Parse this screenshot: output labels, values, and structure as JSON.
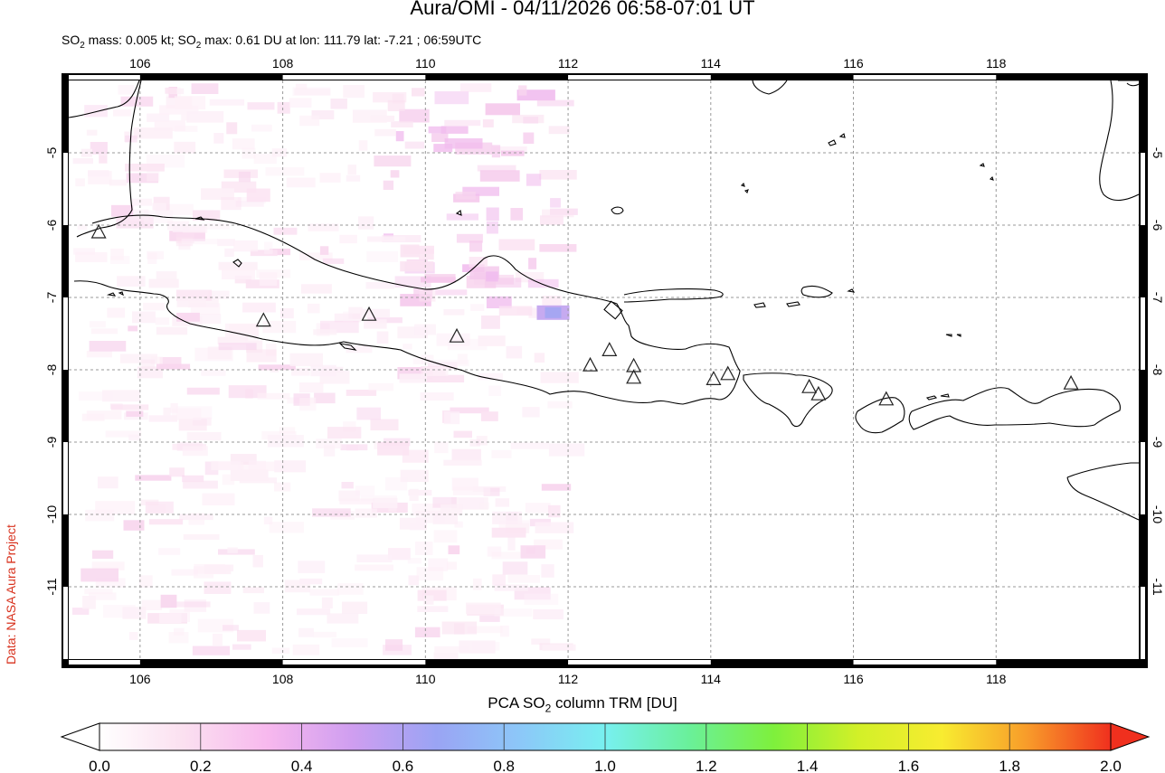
{
  "header": {
    "title": "Aura/OMI - 04/11/2026 06:58-07:01 UT",
    "subtitle_parts": {
      "a": "SO",
      "a_sub": "2",
      "b": " mass: 0.005 kt; SO",
      "b_sub": "2",
      "c": " max: 0.61 DU at lon: 111.79 lat: -7.21 ; 06:59UTC"
    }
  },
  "credit": "Data: NASA Aura Project",
  "map": {
    "lon_range": [
      105,
      120
    ],
    "lat_range": [
      -12,
      -4
    ],
    "lon_ticks": [
      106,
      108,
      110,
      112,
      114,
      116,
      118
    ],
    "lon_tick_labels": [
      "106",
      "108",
      "110",
      "112",
      "114",
      "116",
      "118"
    ],
    "lat_ticks": [
      -5,
      -6,
      -7,
      -8,
      -9,
      -10,
      -11
    ],
    "lat_tick_labels": [
      "-5",
      "-6",
      "-7",
      "-8",
      "-9",
      "-10",
      "-11"
    ],
    "grid": "dashed",
    "coastline_color": "#000000",
    "volcano_marker": "open-triangle",
    "volcanoes": [
      {
        "lon": 105.42,
        "lat": -6.1
      },
      {
        "lon": 107.73,
        "lat": -7.32
      },
      {
        "lon": 109.21,
        "lat": -7.24
      },
      {
        "lon": 110.44,
        "lat": -7.54
      },
      {
        "lon": 112.31,
        "lat": -7.94
      },
      {
        "lon": 112.58,
        "lat": -7.73
      },
      {
        "lon": 112.92,
        "lat": -7.95
      },
      {
        "lon": 112.92,
        "lat": -8.11
      },
      {
        "lon": 114.04,
        "lat": -8.13
      },
      {
        "lon": 114.24,
        "lat": -8.06
      },
      {
        "lon": 115.38,
        "lat": -8.24
      },
      {
        "lon": 115.51,
        "lat": -8.34
      },
      {
        "lon": 116.46,
        "lat": -8.41
      },
      {
        "lon": 119.05,
        "lat": -8.19
      }
    ],
    "so2_hotspot": {
      "lon": 111.79,
      "lat": -7.21,
      "value_du": 0.61
    }
  },
  "colorbar": {
    "title_parts": {
      "a": "PCA SO",
      "a_sub": "2",
      "b": " column TRM [DU]"
    },
    "range": [
      0.0,
      2.0
    ],
    "tick_values": [
      0.0,
      0.2,
      0.4,
      0.6,
      0.8,
      1.0,
      1.2,
      1.4,
      1.6,
      1.8,
      2.0
    ],
    "tick_labels": [
      "0.0",
      "0.2",
      "0.4",
      "0.6",
      "0.8",
      "1.0",
      "1.2",
      "1.4",
      "1.6",
      "1.8",
      "2.0"
    ],
    "colors": [
      "#ffffff",
      "#fbe0f0",
      "#f7b8ee",
      "#cf9ef0",
      "#9aa4f4",
      "#8cc8f8",
      "#78f0f0",
      "#6af09a",
      "#7ef03c",
      "#d2f028",
      "#f8ec30",
      "#f89c2a",
      "#f0301e"
    ]
  }
}
